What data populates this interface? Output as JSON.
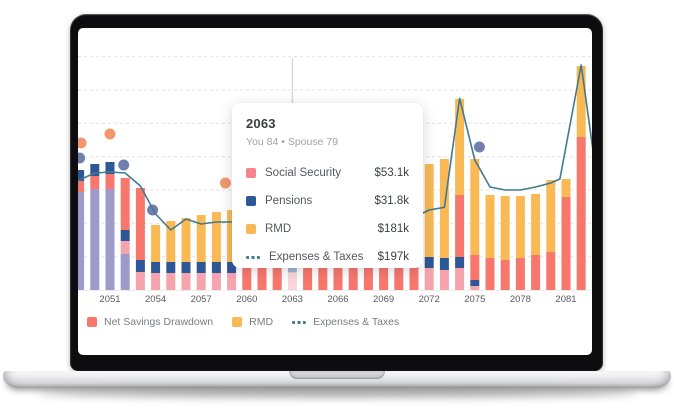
{
  "colors": {
    "social_security": "#f5a4ae",
    "social_security_swatch": "#f8838b",
    "pensions": "#2e5795",
    "rmd": "#f9ba55",
    "net_savings_drawdown": "#f8776d",
    "savings_purple": "#9e9aca",
    "expenses_line": "#42798f",
    "dot_orange": "#ef8a5a",
    "dot_blue": "#5c6da1",
    "gridline": "#e1e1e1",
    "anchor_line": "#d9d9d9"
  },
  "tooltip": {
    "title": "2063",
    "subtitle": "You 84 • Spouse 79",
    "rows": [
      {
        "swatch": "ss",
        "label": "Social Security",
        "value": "$53.1k"
      },
      {
        "swatch": "pension",
        "label": "Pensions",
        "value": "$31.8k"
      },
      {
        "swatch": "rmd",
        "label": "RMD",
        "value": "$181k"
      },
      {
        "swatch": "line",
        "label": "Expenses & Taxes",
        "value": "$197k"
      }
    ]
  },
  "legend": {
    "items": [
      {
        "swatch": "drawdown",
        "label": "Net Savings Drawdown"
      },
      {
        "swatch": "rmd",
        "label": "RMD"
      },
      {
        "swatch": "line",
        "label": "Expenses & Taxes"
      }
    ]
  },
  "chart_data": {
    "type": "bar",
    "subtype": "stacked-bars-with-line-and-scatter",
    "unit": "thousand USD per year",
    "anchor_year": 2063,
    "x_axis": {
      "tick_years": [
        2051,
        2054,
        2057,
        2060,
        2063,
        2066,
        2069,
        2072,
        2075,
        2078,
        2081
      ]
    },
    "y_gridlines_k": [
      100,
      200,
      300,
      400,
      500,
      600,
      700
    ],
    "ylim_k": [
      0,
      700
    ],
    "series_legend": [
      "Net Savings Drawdown",
      "RMD",
      "Expenses & Taxes"
    ],
    "bars": [
      {
        "year": 2049,
        "segments": [
          {
            "s": "savings",
            "v": 294
          },
          {
            "s": "drawdown",
            "v": 33
          },
          {
            "s": "pension",
            "v": 33
          }
        ]
      },
      {
        "year": 2050,
        "segments": [
          {
            "s": "savings",
            "v": 303
          },
          {
            "s": "drawdown",
            "v": 39
          },
          {
            "s": "pension",
            "v": 36
          }
        ]
      },
      {
        "year": 2051,
        "segments": [
          {
            "s": "savings",
            "v": 303
          },
          {
            "s": "drawdown",
            "v": 45
          },
          {
            "s": "pension",
            "v": 36
          }
        ]
      },
      {
        "year": 2052,
        "segments": [
          {
            "s": "savings",
            "v": 108
          },
          {
            "s": "ss",
            "v": 39
          },
          {
            "s": "pension",
            "v": 33
          },
          {
            "s": "drawdown",
            "v": 156
          }
        ]
      },
      {
        "year": 2053,
        "segments": [
          {
            "s": "ss",
            "v": 54
          },
          {
            "s": "pension",
            "v": 36
          },
          {
            "s": "drawdown",
            "v": 216
          }
        ]
      },
      {
        "year": 2054,
        "segments": [
          {
            "s": "ss",
            "v": 51
          },
          {
            "s": "pension",
            "v": 33
          },
          {
            "s": "rmd",
            "v": 111
          }
        ]
      },
      {
        "year": 2055,
        "segments": [
          {
            "s": "ss",
            "v": 51
          },
          {
            "s": "pension",
            "v": 33
          },
          {
            "s": "rmd",
            "v": 123
          }
        ]
      },
      {
        "year": 2056,
        "segments": [
          {
            "s": "ss",
            "v": 51
          },
          {
            "s": "pension",
            "v": 33
          },
          {
            "s": "rmd",
            "v": 132
          }
        ]
      },
      {
        "year": 2057,
        "segments": [
          {
            "s": "ss",
            "v": 51
          },
          {
            "s": "pension",
            "v": 33
          },
          {
            "s": "rmd",
            "v": 141
          }
        ]
      },
      {
        "year": 2058,
        "segments": [
          {
            "s": "ss",
            "v": 51
          },
          {
            "s": "pension",
            "v": 33
          },
          {
            "s": "rmd",
            "v": 150
          }
        ]
      },
      {
        "year": 2059,
        "segments": [
          {
            "s": "ss",
            "v": 51
          },
          {
            "s": "pension",
            "v": 33
          },
          {
            "s": "rmd",
            "v": 156
          }
        ]
      },
      {
        "year": 2060,
        "segments": [
          {
            "s": "drawdown",
            "v": 66
          },
          {
            "s": "rmd",
            "v": 219
          }
        ]
      },
      {
        "year": 2061,
        "segments": [
          {
            "s": "drawdown",
            "v": 66
          },
          {
            "s": "rmd",
            "v": 222
          }
        ]
      },
      {
        "year": 2062,
        "segments": [
          {
            "s": "drawdown",
            "v": 66
          },
          {
            "s": "rmd",
            "v": 228
          }
        ]
      },
      {
        "year": 2063,
        "highlight": true,
        "segments": [
          {
            "s": "ss",
            "v": 53.1
          },
          {
            "s": "pension",
            "v": 31.8
          },
          {
            "s": "rmd",
            "v": 181
          }
        ]
      },
      {
        "year": 2064,
        "segments": [
          {
            "s": "drawdown",
            "v": 66
          },
          {
            "s": "rmd",
            "v": 225
          }
        ]
      },
      {
        "year": 2065,
        "segments": [
          {
            "s": "drawdown",
            "v": 66
          },
          {
            "s": "rmd",
            "v": 220
          }
        ]
      },
      {
        "year": 2066,
        "segments": [
          {
            "s": "drawdown",
            "v": 66
          },
          {
            "s": "rmd",
            "v": 222
          }
        ]
      },
      {
        "year": 2067,
        "segments": [
          {
            "s": "drawdown",
            "v": 66
          },
          {
            "s": "rmd",
            "v": 225
          }
        ]
      },
      {
        "year": 2068,
        "segments": [
          {
            "s": "drawdown",
            "v": 66
          },
          {
            "s": "rmd",
            "v": 228
          }
        ]
      },
      {
        "year": 2069,
        "segments": [
          {
            "s": "drawdown",
            "v": 69
          },
          {
            "s": "rmd",
            "v": 230
          }
        ]
      },
      {
        "year": 2070,
        "segments": [
          {
            "s": "drawdown",
            "v": 69
          },
          {
            "s": "rmd",
            "v": 235
          }
        ]
      },
      {
        "year": 2071,
        "segments": [
          {
            "s": "drawdown",
            "v": 72
          },
          {
            "s": "rmd",
            "v": 240
          }
        ]
      },
      {
        "year": 2072,
        "segments": [
          {
            "s": "ss",
            "v": 66
          },
          {
            "s": "pension",
            "v": 33
          },
          {
            "s": "rmd",
            "v": 279
          }
        ]
      },
      {
        "year": 2073,
        "segments": [
          {
            "s": "ss",
            "v": 60
          },
          {
            "s": "pension",
            "v": 36
          },
          {
            "s": "rmd",
            "v": 297
          }
        ]
      },
      {
        "year": 2074,
        "segments": [
          {
            "s": "ss",
            "v": 66
          },
          {
            "s": "pension",
            "v": 33
          },
          {
            "s": "drawdown",
            "v": 186
          },
          {
            "s": "rmd",
            "v": 288
          }
        ]
      },
      {
        "year": 2075,
        "segments": [
          {
            "s": "ss",
            "v": 12
          },
          {
            "s": "pension",
            "v": 18
          },
          {
            "s": "drawdown",
            "v": 75
          },
          {
            "s": "rmd",
            "v": 288
          }
        ]
      },
      {
        "year": 2076,
        "segments": [
          {
            "s": "drawdown",
            "v": 96
          },
          {
            "s": "rmd",
            "v": 189
          }
        ]
      },
      {
        "year": 2077,
        "segments": [
          {
            "s": "drawdown",
            "v": 90
          },
          {
            "s": "rmd",
            "v": 192
          }
        ]
      },
      {
        "year": 2078,
        "segments": [
          {
            "s": "drawdown",
            "v": 96
          },
          {
            "s": "rmd",
            "v": 186
          }
        ]
      },
      {
        "year": 2079,
        "segments": [
          {
            "s": "drawdown",
            "v": 105
          },
          {
            "s": "rmd",
            "v": 183
          }
        ]
      },
      {
        "year": 2080,
        "segments": [
          {
            "s": "drawdown",
            "v": 114
          },
          {
            "s": "rmd",
            "v": 216
          }
        ]
      },
      {
        "year": 2081,
        "segments": [
          {
            "s": "drawdown",
            "v": 279
          },
          {
            "s": "rmd",
            "v": 54
          }
        ]
      },
      {
        "year": 2082,
        "segments": [
          {
            "s": "drawdown",
            "v": 459
          },
          {
            "s": "rmd",
            "v": 213
          }
        ]
      },
      {
        "year": 2083,
        "segments": [
          {
            "s": "drawdown",
            "v": 30
          },
          {
            "s": "rmd",
            "v": 201
          }
        ]
      }
    ],
    "line": {
      "name": "Expenses & Taxes",
      "points": [
        [
          2048.5,
          320
        ],
        [
          2050,
          351
        ],
        [
          2051,
          354
        ],
        [
          2052,
          351
        ],
        [
          2053,
          312
        ],
        [
          2054,
          228
        ],
        [
          2055,
          180
        ],
        [
          2056,
          213
        ],
        [
          2057,
          198
        ],
        [
          2058,
          204
        ],
        [
          2059,
          204
        ],
        [
          2060,
          201
        ],
        [
          2061,
          199
        ],
        [
          2062,
          198
        ],
        [
          2063,
          197
        ],
        [
          2064,
          198
        ],
        [
          2065,
          200
        ],
        [
          2066,
          202
        ],
        [
          2067,
          204
        ],
        [
          2068,
          206
        ],
        [
          2069,
          208
        ],
        [
          2070,
          210
        ],
        [
          2071,
          218
        ],
        [
          2072,
          240
        ],
        [
          2073,
          248
        ],
        [
          2074,
          575
        ],
        [
          2075,
          390
        ],
        [
          2076,
          309
        ],
        [
          2077,
          300
        ],
        [
          2078,
          300
        ],
        [
          2079,
          309
        ],
        [
          2080,
          321
        ],
        [
          2080.6,
          333
        ],
        [
          2082,
          675
        ],
        [
          2083,
          345
        ],
        [
          2083.4,
          228
        ]
      ]
    },
    "dots": [
      {
        "year": 2049.1,
        "v": 441,
        "c": "orange"
      },
      {
        "year": 2051.0,
        "v": 468,
        "c": "orange"
      },
      {
        "year": 2049.0,
        "v": 396,
        "c": "blue"
      },
      {
        "year": 2051.9,
        "v": 375,
        "c": "blue"
      },
      {
        "year": 2053.8,
        "v": 240,
        "c": "blue"
      },
      {
        "year": 2058.6,
        "v": 321,
        "c": "orange"
      },
      {
        "year": 2075.3,
        "v": 429,
        "c": "blue"
      }
    ]
  }
}
